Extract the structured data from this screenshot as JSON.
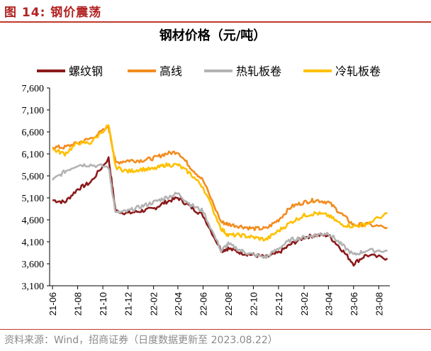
{
  "figure": {
    "title": "图 14:  钢价震荡",
    "source": "资料来源：Wind，招商证券（日度数据更新至 2023.08.22）"
  },
  "chart_data": {
    "type": "line",
    "title": "钢材价格（元/吨）",
    "xlabel": "",
    "ylabel": "",
    "ylim": [
      3100,
      7600
    ],
    "yticks": [
      "7,600",
      "7,100",
      "6,600",
      "6,100",
      "5,600",
      "5,100",
      "4,600",
      "4,100",
      "3,600",
      "3,100"
    ],
    "xticks": [
      "21-06",
      "21-08",
      "21-10",
      "21-12",
      "22-02",
      "22-04",
      "22-06",
      "22-08",
      "22-10",
      "22-12",
      "23-02",
      "23-04",
      "23-06",
      "23-08"
    ],
    "legend_position": "top",
    "x": [
      "2021-06",
      "2021-07",
      "2021-08",
      "2021-09",
      "2021-10-15",
      "2021-11",
      "2021-12",
      "2022-01",
      "2022-02",
      "2022-03",
      "2022-04",
      "2022-05",
      "2022-06",
      "2022-07-15",
      "2022-08",
      "2022-09",
      "2022-10",
      "2022-11",
      "2022-12",
      "2023-01",
      "2023-02",
      "2023-03",
      "2023-04",
      "2023-05",
      "2023-06",
      "2023-07",
      "2023-08-22"
    ],
    "series": [
      {
        "name": "螺纹钢",
        "color": "#8b1a1a",
        "values": [
          5050,
          5000,
          5300,
          5450,
          6000,
          4800,
          4750,
          4800,
          4850,
          5000,
          5100,
          4900,
          4700,
          3900,
          3950,
          3850,
          3800,
          3750,
          3850,
          4050,
          4200,
          4250,
          4250,
          3950,
          3600,
          3800,
          3720
        ]
      },
      {
        "name": "高线",
        "color": "#f28c1f",
        "values": [
          6250,
          6250,
          6350,
          6450,
          6700,
          5900,
          5950,
          5950,
          6000,
          6100,
          6150,
          5800,
          5500,
          4550,
          4500,
          4450,
          4400,
          4400,
          4600,
          4900,
          5000,
          5050,
          5000,
          4750,
          4480,
          4500,
          4420
        ]
      },
      {
        "name": "热轧板卷",
        "color": "#b3b3b3",
        "values": [
          5500,
          5700,
          5850,
          5850,
          5800,
          4750,
          4800,
          4900,
          5000,
          5100,
          5200,
          4950,
          4800,
          3900,
          4050,
          3900,
          3800,
          3750,
          3950,
          4150,
          4200,
          4250,
          4300,
          4050,
          3800,
          3900,
          3900
        ]
      },
      {
        "name": "冷轧板卷",
        "color": "#ffc000",
        "values": [
          6200,
          6100,
          6350,
          6350,
          6750,
          5800,
          5700,
          5750,
          5750,
          5850,
          5850,
          5650,
          5350,
          4400,
          4250,
          4250,
          4200,
          4150,
          4350,
          4550,
          4700,
          4750,
          4700,
          4500,
          4450,
          4500,
          4750
        ]
      }
    ]
  }
}
